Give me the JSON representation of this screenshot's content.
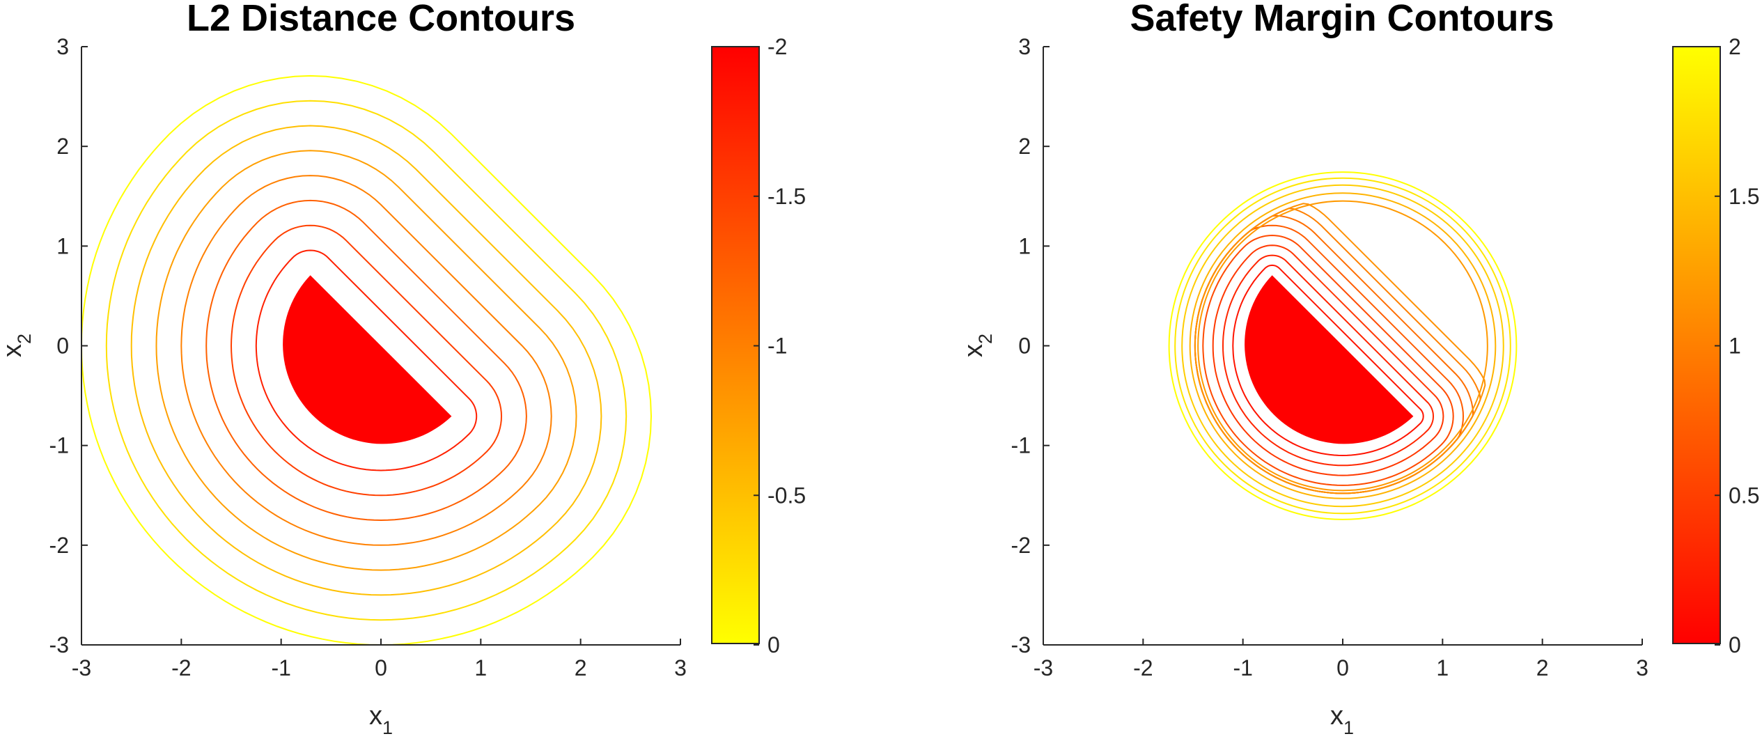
{
  "chart_data": [
    {
      "type": "contour",
      "title": "L2 Distance Contours",
      "xlabel": "x",
      "xlabel_subscript": "1",
      "ylabel": "x",
      "ylabel_subscript": "2",
      "xlim": [
        -3,
        3
      ],
      "ylim": [
        -3,
        3
      ],
      "xticks": [
        -3,
        -2,
        -1,
        0,
        1,
        2,
        3
      ],
      "yticks": [
        -3,
        -2,
        -1,
        0,
        1,
        2,
        3
      ],
      "xtick_labels": [
        "-3",
        "-2",
        "-1",
        "0",
        "1",
        "2",
        "3"
      ],
      "ytick_labels": [
        "-3",
        "-2",
        "-1",
        "0",
        "1",
        "2",
        "3"
      ],
      "colorbar": {
        "range": [
          -2,
          0
        ],
        "ticks": [
          -2,
          -1.5,
          -1,
          -0.5,
          0
        ],
        "tick_labels": [
          "-2",
          "-1.5",
          "-1",
          "-0.5",
          "0"
        ],
        "colormap": "autumn",
        "color_at_min": "#ffff00",
        "color_at_max": "#ff0000"
      },
      "obstacle": {
        "shape": "half-disk",
        "radius": 1,
        "chord_endpoints": [
          [
            -0.707,
            0.707
          ],
          [
            0.707,
            -0.707
          ]
        ],
        "center": [
          0,
          0
        ],
        "fill": "#ff0000"
      },
      "contour_offsets": [
        0.25,
        0.5,
        0.75,
        1.0,
        1.25,
        1.5,
        1.75,
        2.0
      ],
      "contour_levels": [
        -0.25,
        -0.5,
        -0.75,
        -1.0,
        -1.25,
        -1.5,
        -1.75,
        -2.0
      ]
    },
    {
      "type": "contour",
      "title": "Safety Margin Contours",
      "xlabel": "x",
      "xlabel_subscript": "1",
      "ylabel": "x",
      "ylabel_subscript": "2",
      "xlim": [
        -3,
        3
      ],
      "ylim": [
        -3,
        3
      ],
      "xticks": [
        -3,
        -2,
        -1,
        0,
        1,
        2,
        3
      ],
      "yticks": [
        -3,
        -2,
        -1,
        0,
        1,
        2,
        3
      ],
      "xtick_labels": [
        "-3",
        "-2",
        "-1",
        "0",
        "1",
        "2",
        "3"
      ],
      "ytick_labels": [
        "-3",
        "-2",
        "-1",
        "0",
        "1",
        "2",
        "3"
      ],
      "colorbar": {
        "range": [
          0,
          2
        ],
        "ticks": [
          0,
          0.5,
          1,
          1.5,
          2
        ],
        "tick_labels": [
          "0",
          "0.5",
          "1",
          "1.5",
          "2"
        ],
        "colormap": "autumn",
        "color_at_min": "#ff0000",
        "color_at_max": "#ffff00"
      },
      "obstacle": {
        "shape": "half-disk",
        "radius": 1,
        "chord_endpoints": [
          [
            -0.707,
            0.707
          ],
          [
            0.707,
            -0.707
          ]
        ],
        "center": [
          0,
          0
        ],
        "fill": "#ff0000"
      },
      "contour_offsets": [
        0.1,
        0.2,
        0.3,
        0.4,
        0.5,
        0.6,
        0.7,
        0.8
      ],
      "outer_circle_radii": [
        1.45,
        1.53,
        1.61,
        1.68,
        1.74
      ],
      "outer_circle_levels": [
        1.2,
        1.4,
        1.6,
        1.8,
        2.0
      ]
    }
  ]
}
